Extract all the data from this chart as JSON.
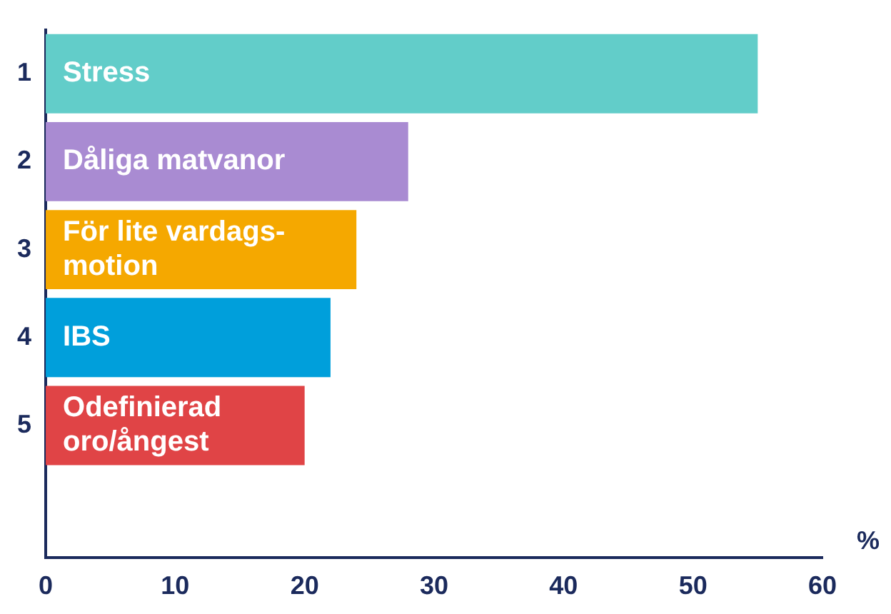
{
  "chart_data": {
    "type": "bar",
    "orientation": "horizontal",
    "categories": [
      "1",
      "2",
      "3",
      "4",
      "5",
      null
    ],
    "values": [
      55,
      28,
      24,
      22,
      20,
      null
    ],
    "colors": [
      "#62cdc9",
      "#a98bd2",
      "#f5a800",
      "#009fdb",
      "#e04446",
      null
    ],
    "xlabel": "%",
    "xlim": [
      0,
      60
    ],
    "xticks": [
      0,
      10,
      20,
      30,
      40,
      50,
      60
    ],
    "grid": false,
    "legend": false,
    "annotations": [
      {
        "text": "Stress",
        "y": "1"
      },
      {
        "text": "Dåliga matvanor",
        "y": "2"
      },
      {
        "text": "För lite vardags-\nmotion",
        "y": "3"
      },
      {
        "text": "IBS",
        "y": "4"
      },
      {
        "text": "Odefinierad\noro/ångest",
        "y": "5"
      }
    ]
  }
}
